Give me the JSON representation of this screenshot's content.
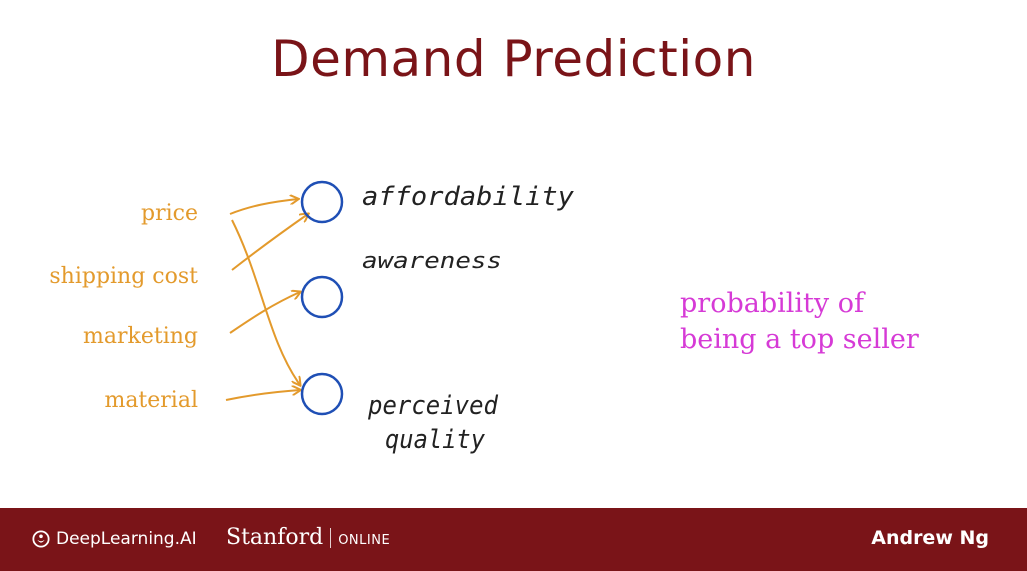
{
  "title": "Demand Prediction",
  "inputs": [
    "price",
    "shipping cost",
    "marketing",
    "material"
  ],
  "hidden_units": [
    "affordability",
    "awareness",
    "perceived quality"
  ],
  "hidden_label_lines": {
    "affordability": [
      "affordability"
    ],
    "awareness": [
      "awareness"
    ],
    "perceived_quality": [
      "perceived",
      "quality"
    ]
  },
  "output": {
    "line1": "probability of",
    "line2": "being a top seller"
  },
  "colors": {
    "title": "#7a1418",
    "inputs": "#e39a2c",
    "nodes": "#1f4fb5",
    "output": "#d63ad6",
    "footer": "#7a1418"
  },
  "footer": {
    "deeplearning": "DeepLearning.AI",
    "stanford": "Stanford",
    "online": "ONLINE",
    "author": "Andrew Ng"
  }
}
